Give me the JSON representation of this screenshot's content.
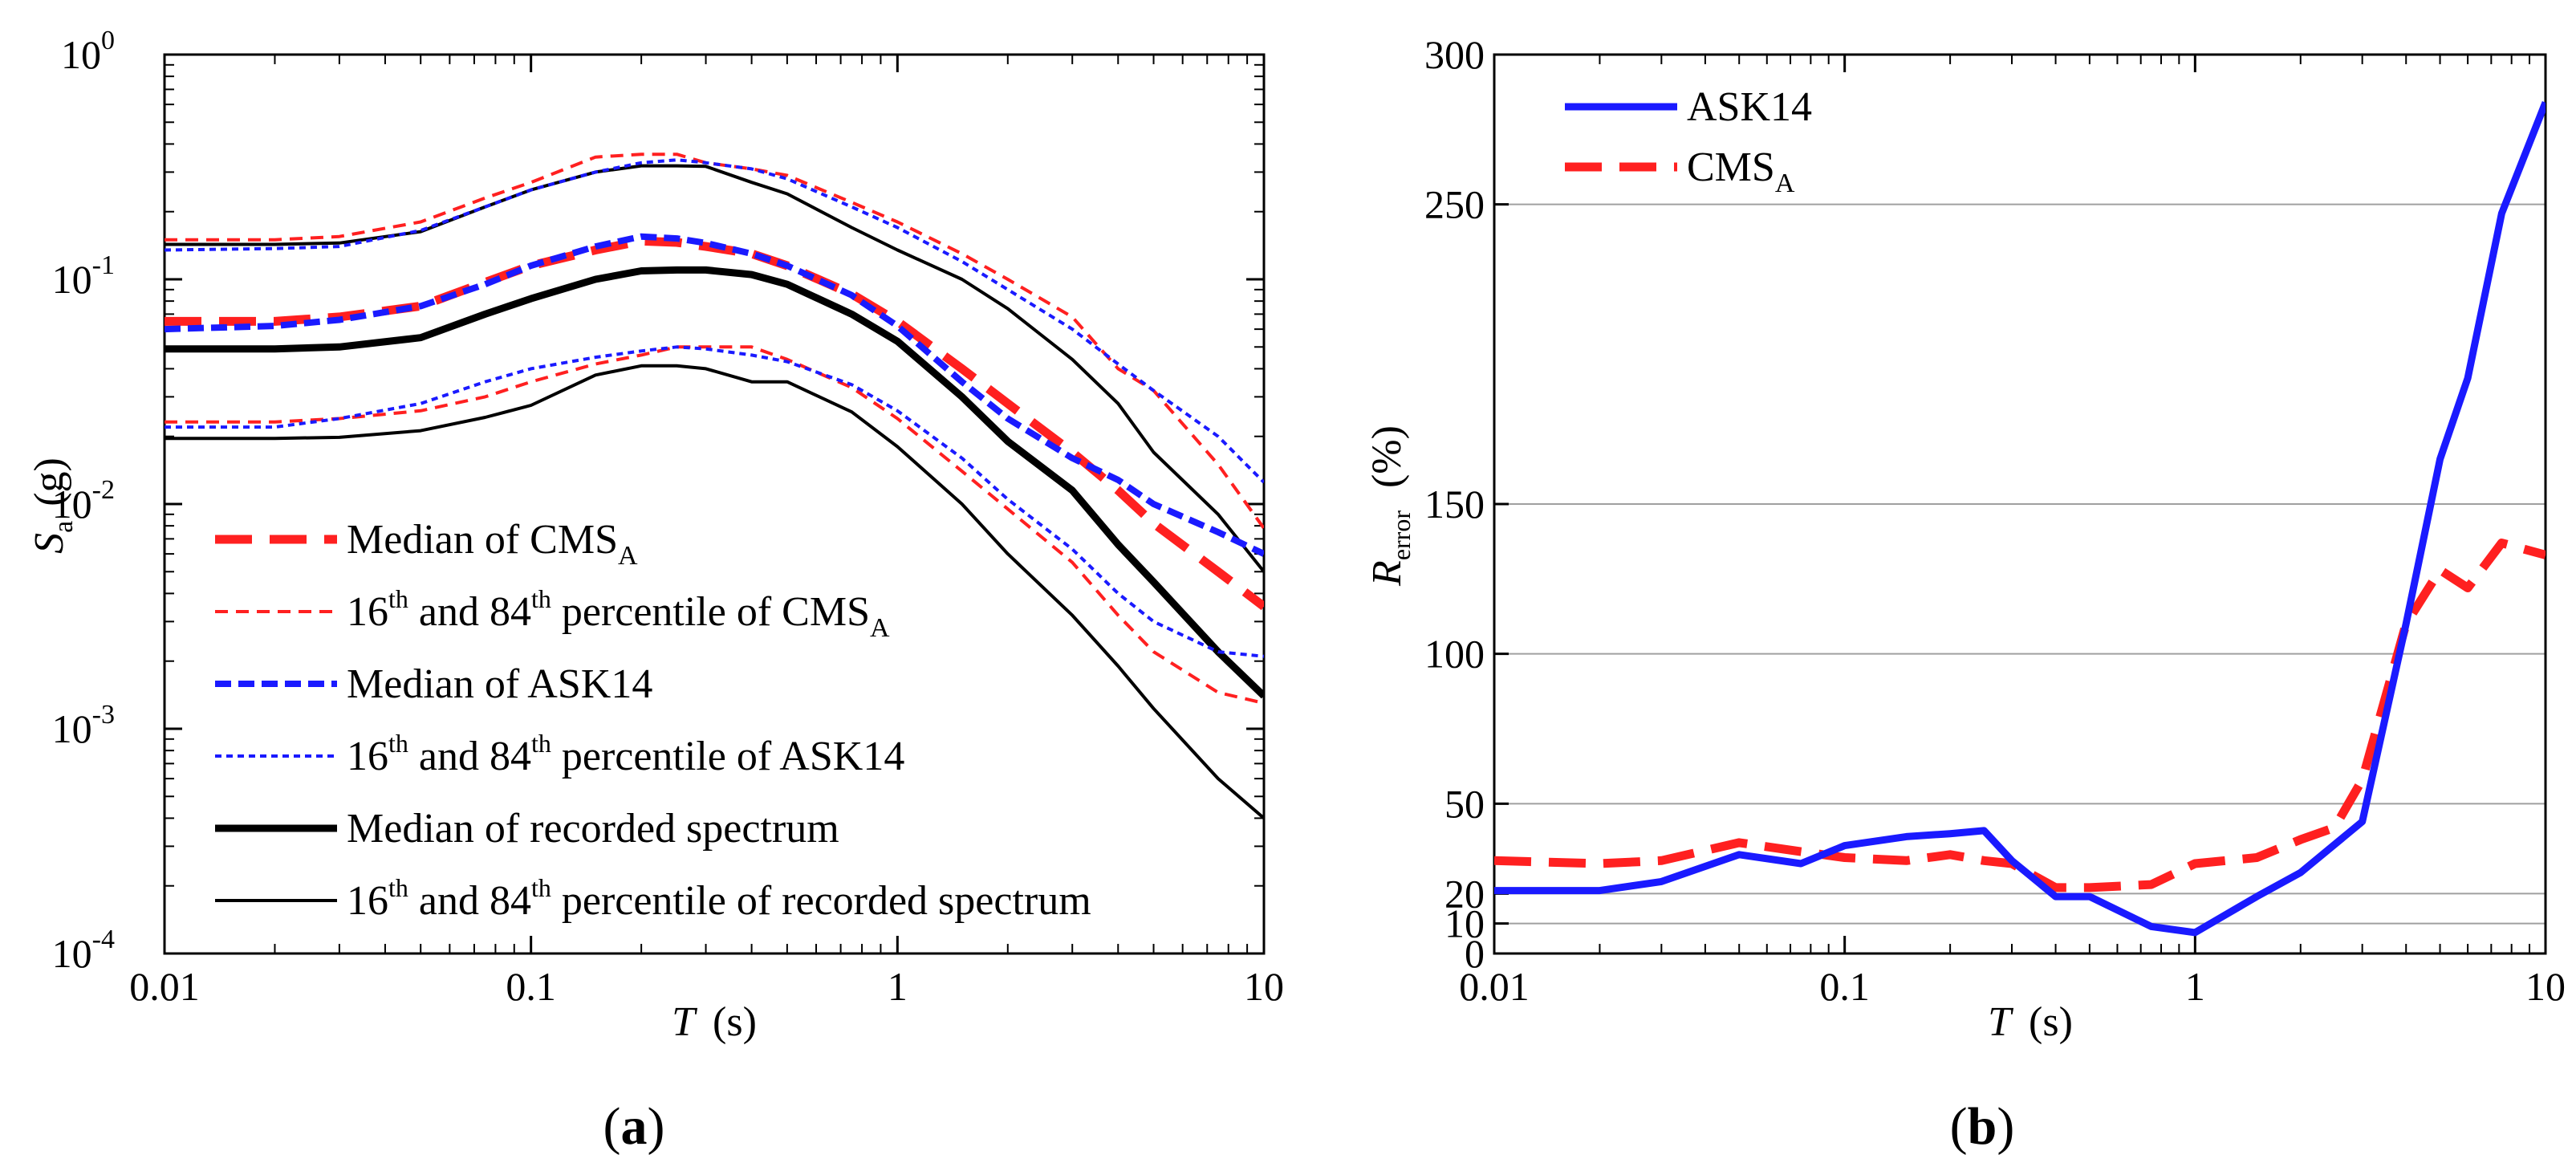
{
  "colors": {
    "red": "#ff2020",
    "blue": "#1a1aff",
    "black": "#000000",
    "grid": "#a0a0a0"
  },
  "chart_data": [
    {
      "type": "line",
      "panel_label": "(a)",
      "panel_letter": "a",
      "xscale": "log",
      "yscale": "log",
      "xlim": [
        0.01,
        10
      ],
      "ylim": [
        0.0001,
        1
      ],
      "xlabel": {
        "var": "T",
        "unit": "(s)"
      },
      "ylabel": {
        "var": "S",
        "sub": "a",
        "unit": "(g)"
      },
      "xticks": [
        {
          "value": 0.01,
          "label": "0.01"
        },
        {
          "value": 0.1,
          "label": "0.1"
        },
        {
          "value": 1,
          "label": "1"
        },
        {
          "value": 10,
          "label": "10"
        }
      ],
      "yticks": [
        {
          "value": 1,
          "base": "10",
          "exp": "0"
        },
        {
          "value": 0.1,
          "base": "10",
          "exp": "-1"
        },
        {
          "value": 0.01,
          "base": "10",
          "exp": "-2"
        },
        {
          "value": 0.001,
          "base": "10",
          "exp": "-3"
        },
        {
          "value": 0.0001,
          "base": "10",
          "exp": "-4"
        }
      ],
      "legend_position": "bottom-left",
      "legend": [
        {
          "parts": [
            {
              "t": "Median of CMS"
            },
            {
              "t": "A",
              "sub": true
            }
          ],
          "color": "red",
          "style": "dash-thick"
        },
        {
          "parts": [
            {
              "t": "16"
            },
            {
              "t": "th",
              "sup": true
            },
            {
              "t": " and 84"
            },
            {
              "t": "th",
              "sup": true
            },
            {
              "t": " percentile of CMS"
            },
            {
              "t": "A",
              "sub": true
            }
          ],
          "color": "red",
          "style": "dash-thin"
        },
        {
          "parts": [
            {
              "t": "Median of  ASK14"
            }
          ],
          "color": "blue",
          "style": "dash-med"
        },
        {
          "parts": [
            {
              "t": "16"
            },
            {
              "t": "th",
              "sup": true
            },
            {
              "t": " and 84"
            },
            {
              "t": "th",
              "sup": true
            },
            {
              "t": " percentile of ASK14"
            }
          ],
          "color": "blue",
          "style": "dot-thin"
        },
        {
          "parts": [
            {
              "t": "Median of recorded spectrum"
            }
          ],
          "color": "black",
          "style": "solid-thick"
        },
        {
          "parts": [
            {
              "t": "16"
            },
            {
              "t": "th",
              "sup": true
            },
            {
              "t": " and 84"
            },
            {
              "t": "th",
              "sup": true
            },
            {
              "t": " percentile of recorded spectrum"
            }
          ],
          "color": "black",
          "style": "solid-thin"
        }
      ],
      "series": [
        {
          "name": "16th percentile of recorded spectrum",
          "color": "black",
          "style": "solid-thin",
          "x": [
            0.01,
            0.02,
            0.03,
            0.05,
            0.075,
            0.1,
            0.15,
            0.2,
            0.25,
            0.3,
            0.4,
            0.5,
            0.75,
            1,
            1.5,
            2,
            3,
            4,
            5,
            7.5,
            10
          ],
          "y": [
            0.0196,
            0.0196,
            0.0198,
            0.0212,
            0.0243,
            0.0275,
            0.0375,
            0.0412,
            0.0412,
            0.04,
            0.035,
            0.035,
            0.0257,
            0.018,
            0.01,
            0.006,
            0.0032,
            0.0019,
            0.00123,
            0.0006,
            0.0004
          ]
        },
        {
          "name": "84th percentile of recorded spectrum",
          "color": "black",
          "style": "solid-thin",
          "x": [
            0.01,
            0.02,
            0.03,
            0.05,
            0.075,
            0.1,
            0.15,
            0.2,
            0.25,
            0.3,
            0.4,
            0.5,
            0.75,
            1,
            1.5,
            2,
            3,
            4,
            5,
            7.5,
            10
          ],
          "y": [
            0.143,
            0.143,
            0.145,
            0.163,
            0.21,
            0.25,
            0.3,
            0.32,
            0.32,
            0.318,
            0.27,
            0.24,
            0.17,
            0.135,
            0.1,
            0.074,
            0.044,
            0.028,
            0.017,
            0.009,
            0.005
          ]
        },
        {
          "name": "Median of recorded spectrum",
          "color": "black",
          "style": "solid-thick",
          "x": [
            0.01,
            0.02,
            0.03,
            0.05,
            0.075,
            0.1,
            0.15,
            0.2,
            0.25,
            0.3,
            0.4,
            0.5,
            0.75,
            1,
            1.5,
            2,
            3,
            4,
            5,
            7.5,
            10
          ],
          "y": [
            0.049,
            0.049,
            0.05,
            0.055,
            0.07,
            0.082,
            0.1,
            0.109,
            0.11,
            0.11,
            0.105,
            0.095,
            0.07,
            0.053,
            0.03,
            0.019,
            0.0115,
            0.0066,
            0.0045,
            0.0022,
            0.0014
          ]
        },
        {
          "name": "16th percentile of CMS_A",
          "color": "red",
          "style": "dash-thin",
          "x": [
            0.01,
            0.02,
            0.03,
            0.05,
            0.075,
            0.1,
            0.15,
            0.2,
            0.25,
            0.3,
            0.4,
            0.5,
            0.75,
            1,
            1.5,
            2,
            3,
            4,
            5,
            7.5,
            10
          ],
          "y": [
            0.0232,
            0.0232,
            0.024,
            0.026,
            0.03,
            0.035,
            0.042,
            0.046,
            0.05,
            0.05,
            0.05,
            0.044,
            0.033,
            0.024,
            0.014,
            0.0095,
            0.0055,
            0.0032,
            0.0022,
            0.00145,
            0.0013
          ]
        },
        {
          "name": "84th percentile of CMS_A",
          "color": "red",
          "style": "dash-thin",
          "x": [
            0.01,
            0.02,
            0.03,
            0.05,
            0.075,
            0.1,
            0.15,
            0.2,
            0.25,
            0.3,
            0.4,
            0.5,
            0.75,
            1,
            1.5,
            2,
            3,
            4,
            5,
            7.5,
            10
          ],
          "y": [
            0.15,
            0.15,
            0.155,
            0.18,
            0.23,
            0.27,
            0.35,
            0.36,
            0.36,
            0.33,
            0.31,
            0.29,
            0.22,
            0.18,
            0.13,
            0.1,
            0.068,
            0.04,
            0.032,
            0.015,
            0.0078
          ]
        },
        {
          "name": "Median of CMS_A",
          "color": "red",
          "style": "dash-thick",
          "x": [
            0.01,
            0.02,
            0.03,
            0.05,
            0.075,
            0.1,
            0.15,
            0.2,
            0.25,
            0.3,
            0.4,
            0.5,
            0.75,
            1,
            1.5,
            2,
            3,
            4,
            5,
            7.5,
            10
          ],
          "y": [
            0.065,
            0.065,
            0.068,
            0.076,
            0.097,
            0.115,
            0.135,
            0.148,
            0.146,
            0.14,
            0.13,
            0.115,
            0.086,
            0.065,
            0.04,
            0.028,
            0.017,
            0.0115,
            0.0082,
            0.005,
            0.0035
          ]
        },
        {
          "name": "16th percentile of ASK14",
          "color": "blue",
          "style": "dot-thin",
          "x": [
            0.01,
            0.02,
            0.03,
            0.05,
            0.075,
            0.1,
            0.15,
            0.2,
            0.25,
            0.3,
            0.4,
            0.5,
            0.75,
            1,
            1.5,
            2,
            3,
            4,
            5,
            7.5,
            10
          ],
          "y": [
            0.022,
            0.022,
            0.024,
            0.028,
            0.035,
            0.04,
            0.045,
            0.048,
            0.05,
            0.049,
            0.046,
            0.043,
            0.034,
            0.026,
            0.016,
            0.0105,
            0.0063,
            0.004,
            0.003,
            0.0022,
            0.0021
          ]
        },
        {
          "name": "84th percentile of ASK14",
          "color": "blue",
          "style": "dot-thin",
          "x": [
            0.01,
            0.02,
            0.03,
            0.05,
            0.075,
            0.1,
            0.15,
            0.2,
            0.25,
            0.3,
            0.4,
            0.5,
            0.75,
            1,
            1.5,
            2,
            3,
            4,
            5,
            7.5,
            10
          ],
          "y": [
            0.135,
            0.137,
            0.14,
            0.165,
            0.21,
            0.25,
            0.3,
            0.33,
            0.34,
            0.33,
            0.31,
            0.28,
            0.21,
            0.17,
            0.12,
            0.09,
            0.06,
            0.042,
            0.032,
            0.02,
            0.0125
          ]
        },
        {
          "name": "Median of ASK14",
          "color": "blue",
          "style": "dash-med",
          "x": [
            0.01,
            0.02,
            0.03,
            0.05,
            0.075,
            0.1,
            0.15,
            0.2,
            0.25,
            0.3,
            0.4,
            0.5,
            0.75,
            1,
            1.5,
            2,
            3,
            4,
            5,
            7.5,
            10
          ],
          "y": [
            0.06,
            0.062,
            0.066,
            0.076,
            0.095,
            0.115,
            0.14,
            0.155,
            0.152,
            0.145,
            0.13,
            0.115,
            0.085,
            0.062,
            0.035,
            0.024,
            0.016,
            0.0128,
            0.01,
            0.0075,
            0.006
          ]
        }
      ]
    },
    {
      "type": "line",
      "panel_label": "(b)",
      "panel_letter": "b",
      "xscale": "log",
      "yscale": "linear",
      "xlim": [
        0.01,
        10
      ],
      "ylim": [
        0,
        300
      ],
      "grid": "horizontal",
      "xlabel": {
        "var": "T",
        "unit": "(s)"
      },
      "ylabel": {
        "var": "R",
        "sub": "error",
        "unit": "(%)"
      },
      "xticks": [
        {
          "value": 0.01,
          "label": "0.01"
        },
        {
          "value": 0.1,
          "label": "0.1"
        },
        {
          "value": 1,
          "label": "1"
        },
        {
          "value": 10,
          "label": "10"
        }
      ],
      "yticks": [
        {
          "value": 0,
          "label": "0"
        },
        {
          "value": 10,
          "label": "10"
        },
        {
          "value": 20,
          "label": "20"
        },
        {
          "value": 50,
          "label": "50"
        },
        {
          "value": 100,
          "label": "100"
        },
        {
          "value": 150,
          "label": "150"
        },
        {
          "value": 250,
          "label": "250"
        },
        {
          "value": 300,
          "label": "300"
        }
      ],
      "legend_position": "top-left",
      "legend": [
        {
          "parts": [
            {
              "t": "ASK14"
            }
          ],
          "color": "blue",
          "style": "solid-thick"
        },
        {
          "parts": [
            {
              "t": "CMS"
            },
            {
              "t": "A",
              "sub": true
            }
          ],
          "color": "red",
          "style": "dash-thick"
        }
      ],
      "series": [
        {
          "name": "CMS_A",
          "color": "red",
          "style": "dash-thick",
          "x": [
            0.01,
            0.02,
            0.03,
            0.05,
            0.075,
            0.1,
            0.15,
            0.2,
            0.25,
            0.3,
            0.4,
            0.5,
            0.75,
            1,
            1.5,
            2,
            2.5,
            3,
            4,
            5,
            6,
            7.5,
            10
          ],
          "y": [
            31,
            30,
            31,
            37,
            34,
            32,
            31,
            33,
            31,
            30,
            22,
            22,
            23,
            30,
            32,
            38,
            42,
            58,
            110,
            128,
            122,
            137,
            133
          ]
        },
        {
          "name": "ASK14",
          "color": "blue",
          "style": "solid-thick",
          "x": [
            0.01,
            0.02,
            0.03,
            0.05,
            0.075,
            0.1,
            0.15,
            0.2,
            0.25,
            0.3,
            0.4,
            0.5,
            0.75,
            1,
            1.5,
            2,
            3,
            4,
            5,
            6,
            7.5,
            10
          ],
          "y": [
            21,
            21,
            24,
            33,
            30,
            36,
            39,
            40,
            41,
            31,
            19,
            19,
            9,
            7,
            19,
            27,
            44,
            110,
            165,
            192,
            247,
            284
          ]
        }
      ]
    }
  ]
}
